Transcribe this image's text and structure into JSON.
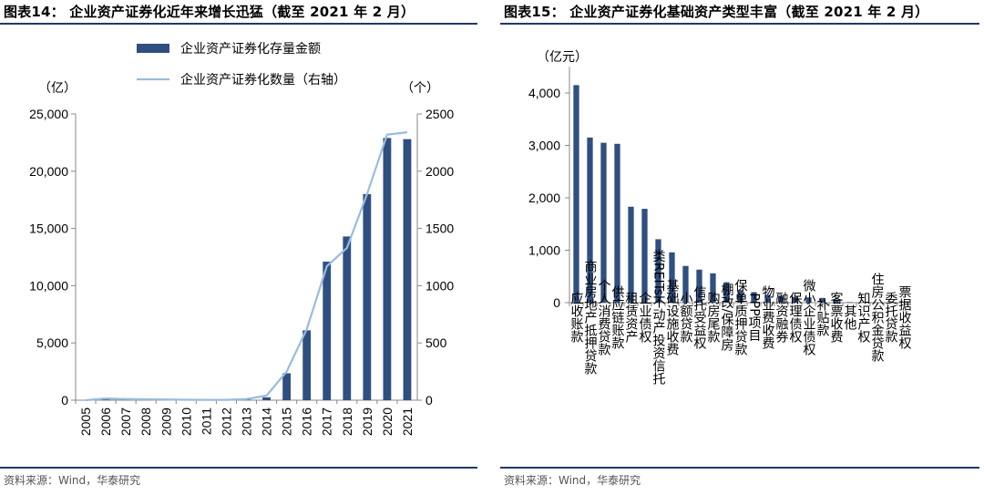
{
  "left": {
    "title": "图表14： 企业资产证券化近年来增长迅猛（截至 2021 年 2 月）",
    "source": "资料来源：Wind，华泰研究",
    "chart_data": {
      "type": "bar+line",
      "unit_left": "（亿）",
      "unit_right": "（个）",
      "categories": [
        "2005",
        "2006",
        "2007",
        "2008",
        "2009",
        "2010",
        "2011",
        "2012",
        "2013",
        "2014",
        "2015",
        "2016",
        "2017",
        "2018",
        "2019",
        "2020",
        "2021"
      ],
      "series": [
        {
          "name": "企业资产证券化存量金额",
          "type": "bar",
          "axis": "left",
          "values": [
            0,
            150,
            80,
            50,
            30,
            20,
            20,
            20,
            50,
            250,
            2350,
            6100,
            12100,
            14300,
            18000,
            22900,
            22800
          ]
        },
        {
          "name": "企业资产证券化数量（右轴）",
          "type": "line",
          "axis": "right",
          "values": [
            0,
            15,
            10,
            8,
            6,
            4,
            3,
            3,
            10,
            40,
            250,
            620,
            1170,
            1330,
            1800,
            2320,
            2340
          ]
        }
      ],
      "ylim_left": [
        0,
        25000
      ],
      "ylim_right": [
        0,
        2500
      ],
      "yticks_left": [
        "0",
        "5,000",
        "10,000",
        "15,000",
        "20,000",
        "25,000"
      ],
      "yticks_right": [
        "0",
        "500",
        "1000",
        "1500",
        "2000",
        "2500"
      ],
      "colors": {
        "bar": "#2f4f80",
        "line": "#9bbbdd"
      },
      "legend_position": "top"
    }
  },
  "right": {
    "title": "图表15： 企业资产证券化基础资产类型丰富（截至 2021 年 2 月）",
    "source": "资料来源：Wind，华泰研究",
    "chart_data": {
      "type": "bar",
      "unit": "（亿元）",
      "categories": [
        "应收账款",
        "商业房地产抵押贷款",
        "个人消费贷款",
        "供应链账款",
        "租赁资产",
        "企业债权",
        "类REITs不动产投资信托",
        "基础设施收费",
        "小额贷款",
        "信托受益权",
        "购房尾款",
        "棚改/保障房",
        "保单质押贷款",
        "PPP项目",
        "物业费收费",
        "融资融券",
        "保理债权",
        "微小企业债权",
        "补贴款",
        "客票收费",
        "其他",
        "知识产权",
        "住房公积金贷款",
        "委托贷款",
        "票据收益权"
      ],
      "values": [
        4150,
        3150,
        3050,
        3030,
        1830,
        1790,
        1210,
        960,
        700,
        630,
        560,
        390,
        240,
        200,
        150,
        130,
        110,
        100,
        90,
        60,
        10,
        8,
        6,
        4,
        3
      ],
      "ylim": [
        0,
        4500
      ],
      "yticks": [
        "0",
        "1,000",
        "2,000",
        "3,000",
        "4,000"
      ],
      "colors": {
        "bar": "#2f4f80"
      }
    }
  }
}
